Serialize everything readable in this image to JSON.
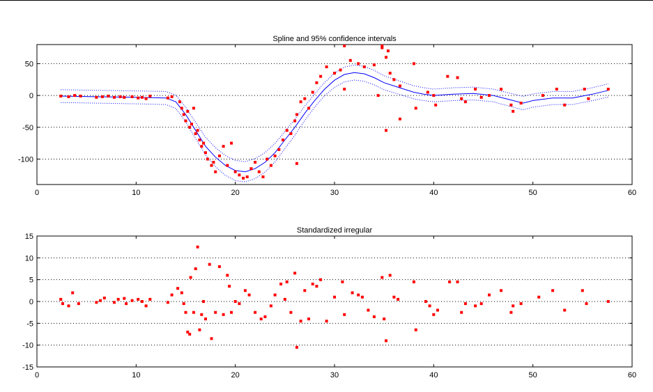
{
  "chart_data": [
    {
      "type": "scatter",
      "title": "Spline and 95% confidence intervals",
      "xlabel": "",
      "ylabel": "",
      "xlim": [
        0,
        60
      ],
      "ylim": [
        -140,
        80
      ],
      "xticks": [
        0,
        10,
        20,
        30,
        40,
        50,
        60
      ],
      "yticks": [
        50,
        0,
        -50,
        -100
      ],
      "grid": "horizontal-dotted",
      "colors": {
        "points": "#ff0000",
        "spline": "#0000ff",
        "ci": "#0000ff"
      },
      "series": [
        {
          "kind": "points",
          "x": [
            2.4,
            3.2,
            3.8,
            4.4,
            6.0,
            6.6,
            7.2,
            7.8,
            8.4,
            8.8,
            9.6,
            10.2,
            10.6,
            11.0,
            11.4,
            13.2,
            13.6,
            14.4,
            14.6,
            14.8,
            15.0,
            15.2,
            15.4,
            15.6,
            15.8,
            16.0,
            16.2,
            16.4,
            16.6,
            16.8,
            17.0,
            17.2,
            17.6,
            17.8,
            18.0,
            18.4,
            18.8,
            19.2,
            19.6,
            20.0,
            20.4,
            20.8,
            21.2,
            21.6,
            22.0,
            22.4,
            22.8,
            23.2,
            23.6,
            24.0,
            24.4,
            24.8,
            25.2,
            25.6,
            26.0,
            26.2,
            26.6,
            27.0,
            27.4,
            27.8,
            28.2,
            28.6,
            29.2,
            30.0,
            30.6,
            31.0,
            31.6,
            32.4,
            33.0,
            34.0,
            34.4,
            34.8,
            35.2,
            35.6,
            36.0,
            36.6,
            38.0,
            38.2,
            39.4,
            40.0,
            40.2,
            41.4,
            42.4,
            42.8,
            43.2,
            44.2,
            44.8,
            45.6,
            46.8,
            47.8,
            48.0,
            48.8,
            51.0,
            52.4,
            53.2,
            55.2,
            55.6,
            57.6
          ],
          "y": [
            -1,
            -2,
            0,
            -1,
            -3,
            -2,
            -1,
            -3,
            -2,
            -3,
            -2,
            -4,
            -3,
            -5,
            -1,
            -4,
            -2,
            -10,
            -20,
            -30,
            -40,
            -25,
            -50,
            -45,
            -20,
            -60,
            -55,
            -70,
            -80,
            -75,
            -90,
            -100,
            -110,
            -105,
            -120,
            -95,
            -80,
            -110,
            -75,
            -120,
            -125,
            -130,
            -128,
            -115,
            -105,
            -120,
            -128,
            -100,
            -110,
            -95,
            -85,
            -70,
            -55,
            -60,
            -40,
            -30,
            -10,
            -5,
            -20,
            5,
            20,
            30,
            45,
            35,
            40,
            10,
            55,
            50,
            45,
            48,
            0,
            75,
            60,
            35,
            25,
            15,
            50,
            -20,
            5,
            0,
            -15,
            30,
            28,
            -5,
            -10,
            10,
            -3,
            0,
            10,
            -15,
            -25,
            -12,
            0,
            10,
            -15,
            10,
            -5,
            10
          ],
          "extra_points": [
            [
              31.0,
              78
            ],
            [
              34.8,
              78
            ],
            [
              35.4,
              70
            ],
            [
              35.2,
              -55
            ],
            [
              26.2,
              -107
            ],
            [
              36.6,
              -37
            ]
          ]
        },
        {
          "kind": "spline",
          "x": [
            2.4,
            6,
            10,
            13,
            14,
            15,
            16,
            17,
            18,
            19,
            20,
            21,
            22,
            23,
            24,
            25,
            26,
            27,
            28,
            29,
            30,
            31,
            32,
            33,
            34,
            35,
            36,
            37,
            38,
            39,
            40,
            42,
            44,
            46,
            48,
            49,
            50,
            52,
            54,
            56,
            57.6
          ],
          "y": [
            -1,
            -2,
            -3,
            -4,
            -10,
            -30,
            -55,
            -80,
            -97,
            -110,
            -118,
            -120,
            -115,
            -105,
            -90,
            -70,
            -50,
            -28,
            -8,
            10,
            24,
            33,
            36,
            34,
            28,
            20,
            15,
            10,
            5,
            2,
            0,
            2,
            3,
            0,
            -8,
            -12,
            -8,
            -4,
            -4,
            2,
            8
          ]
        }
      ]
    },
    {
      "type": "scatter",
      "title": "Standardized irregular",
      "xlabel": "",
      "ylabel": "",
      "xlim": [
        0,
        60
      ],
      "ylim": [
        -15,
        15
      ],
      "xticks": [
        0,
        10,
        20,
        30,
        40,
        50,
        60
      ],
      "yticks": [
        15,
        10,
        5,
        0,
        -5,
        -10,
        -15
      ],
      "grid": "horizontal-dotted",
      "colors": {
        "points": "#ff0000"
      },
      "series": [
        {
          "kind": "points",
          "x": [
            2.4,
            2.6,
            3.2,
            3.6,
            4.2,
            6.0,
            6.4,
            6.8,
            7.8,
            8.2,
            8.8,
            9.0,
            9.6,
            10.2,
            10.6,
            11.0,
            11.4,
            13.2,
            13.6,
            14.2,
            14.6,
            14.8,
            15.0,
            15.2,
            15.4,
            15.5,
            15.8,
            16.0,
            16.2,
            16.4,
            16.6,
            16.8,
            17.0,
            17.4,
            17.6,
            18.0,
            18.4,
            18.8,
            19.2,
            19.4,
            19.6,
            20.0,
            20.4,
            21.0,
            21.4,
            22.0,
            22.6,
            23.0,
            23.6,
            24.0,
            24.6,
            25.0,
            25.2,
            25.6,
            26.0,
            26.2,
            26.6,
            27.0,
            27.4,
            27.8,
            28.2,
            28.6,
            29.2,
            30.0,
            30.8,
            31.0,
            31.8,
            32.4,
            32.8,
            33.4,
            34.0,
            34.8,
            35.0,
            35.2,
            35.6,
            36.0,
            36.4,
            38.0,
            38.2,
            39.2,
            39.6,
            40.0,
            40.4,
            41.6,
            42.4,
            42.8,
            43.2,
            44.2,
            44.8,
            45.6,
            46.8,
            47.8,
            48.0,
            48.8,
            50.6,
            52.0,
            53.2,
            55.0,
            55.4,
            57.6
          ],
          "y": [
            0.5,
            -0.5,
            -1.0,
            2.0,
            -0.5,
            -0.2,
            0.2,
            0.8,
            -0.2,
            0.5,
            0.7,
            -0.5,
            0.2,
            0.5,
            0.0,
            -1.0,
            0.5,
            -0.2,
            1.5,
            3.0,
            2.0,
            -0.5,
            -2.5,
            -7.0,
            -7.5,
            5.5,
            -2.5,
            7.5,
            12.5,
            -6.5,
            -3.0,
            0.0,
            -4.0,
            8.5,
            -8.5,
            -2.5,
            8.0,
            -3.0,
            6.0,
            3.5,
            -2.5,
            0.0,
            -0.5,
            2.5,
            1.5,
            -2.5,
            -4.0,
            -3.5,
            -1.0,
            1.5,
            4.0,
            0.5,
            4.5,
            -2.5,
            6.5,
            -10.5,
            -4.5,
            2.5,
            -4.0,
            4.0,
            3.5,
            5.0,
            -4.5,
            1.0,
            4.5,
            -3.0,
            2.0,
            1.5,
            1.0,
            -2.0,
            -3.5,
            5.5,
            -4.0,
            -9.0,
            6.0,
            1.0,
            0.5,
            4.5,
            -6.5,
            0.0,
            -1.0,
            -3.0,
            -2.0,
            4.5,
            4.5,
            -2.5,
            -0.5,
            -1.0,
            -0.5,
            1.5,
            2.5,
            -2.5,
            -1.0,
            -0.5,
            1.0,
            2.5,
            -2.0,
            2.5,
            -0.5,
            0.0
          ]
        }
      ]
    }
  ]
}
